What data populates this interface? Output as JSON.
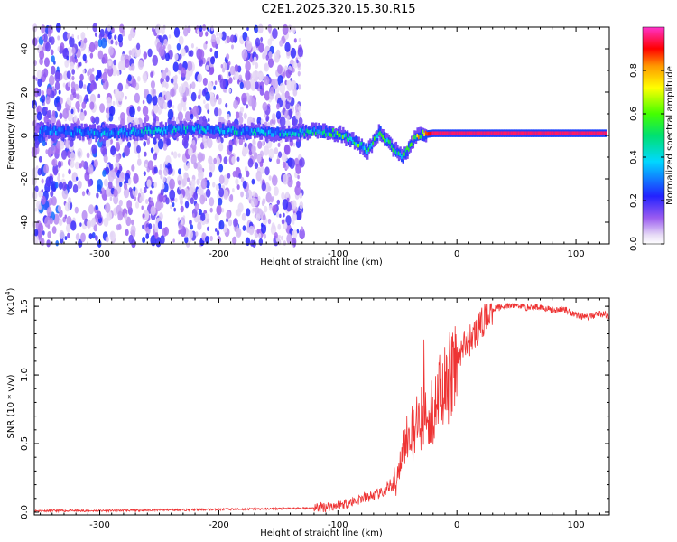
{
  "title": "C2E1.2025.320.15.30.R15",
  "chart_data": [
    {
      "type": "heatmap",
      "xlabel": "Height of straight line (km)",
      "ylabel": "Frequency (Hz)",
      "xlim": [
        -355,
        128
      ],
      "ylim": [
        -50,
        50
      ],
      "x_ticks": [
        -300,
        -200,
        -100,
        0,
        100
      ],
      "x_tick_labels": [
        "-300",
        "-200",
        "-100",
        "0",
        "100"
      ],
      "y_ticks": [
        -40,
        -20,
        0,
        20,
        40
      ],
      "y_tick_labels": [
        "-40",
        "-20",
        "0",
        "20",
        "40"
      ],
      "ridge": {
        "height_km": [
          -330,
          -300,
          -260,
          -220,
          -180,
          -140,
          -120,
          -100,
          -85,
          -75,
          -65,
          -55,
          -45,
          -35,
          -20,
          0,
          40,
          80,
          120
        ],
        "frequency_hz": [
          2,
          1,
          2,
          3,
          2,
          1,
          2,
          1,
          -3,
          -7,
          2,
          -5,
          -10,
          0,
          1,
          1,
          1,
          1,
          1
        ],
        "peak_amplitude": [
          0.35,
          0.38,
          0.4,
          0.42,
          0.42,
          0.45,
          0.5,
          0.55,
          0.6,
          0.5,
          0.55,
          0.5,
          0.55,
          0.7,
          0.95,
          0.95,
          0.95,
          0.95,
          0.95
        ]
      },
      "colorbar": {
        "label": "Normalized spectral amplitude",
        "range": [
          0,
          1
        ],
        "ticks": [
          0.0,
          0.2,
          0.4,
          0.6,
          0.8
        ],
        "tick_labels": [
          "0.0",
          "0.2",
          "0.4",
          "0.6",
          "0.8"
        ]
      }
    },
    {
      "type": "line",
      "xlabel": "Height of straight line (km)",
      "ylabel": "SNR (10 * v/v)",
      "multiplier_label": "(x10",
      "multiplier_exp": "4",
      "xlim": [
        -355,
        128
      ],
      "ylim": [
        -0.02,
        1.56
      ],
      "x_ticks": [
        -300,
        -200,
        -100,
        0,
        100
      ],
      "x_tick_labels": [
        "-300",
        "-200",
        "-100",
        "0",
        "100"
      ],
      "y_ticks": [
        0.0,
        0.5,
        1.0,
        1.5
      ],
      "y_tick_labels": [
        "0.0",
        "0.5",
        "1.0",
        "1.5"
      ],
      "color": "#ee3333",
      "series": [
        {
          "name": "SNR",
          "x": [
            -355,
            -300,
            -250,
            -200,
            -150,
            -120,
            -100,
            -90,
            -80,
            -70,
            -60,
            -55,
            -50,
            -45,
            -40,
            -35,
            -30,
            -25,
            -20,
            -15,
            -10,
            -5,
            0,
            5,
            10,
            15,
            20,
            25,
            30,
            40,
            50,
            60,
            70,
            80,
            90,
            100,
            110,
            120,
            128
          ],
          "y": [
            0.01,
            0.01,
            0.015,
            0.02,
            0.025,
            0.03,
            0.05,
            0.07,
            0.1,
            0.12,
            0.15,
            0.2,
            0.3,
            0.45,
            0.6,
            0.6,
            0.7,
            0.7,
            0.75,
            0.85,
            0.9,
            1.0,
            1.1,
            1.2,
            1.25,
            1.3,
            1.35,
            1.45,
            1.48,
            1.5,
            1.51,
            1.49,
            1.5,
            1.47,
            1.48,
            1.44,
            1.42,
            1.45,
            1.43
          ]
        }
      ]
    }
  ]
}
